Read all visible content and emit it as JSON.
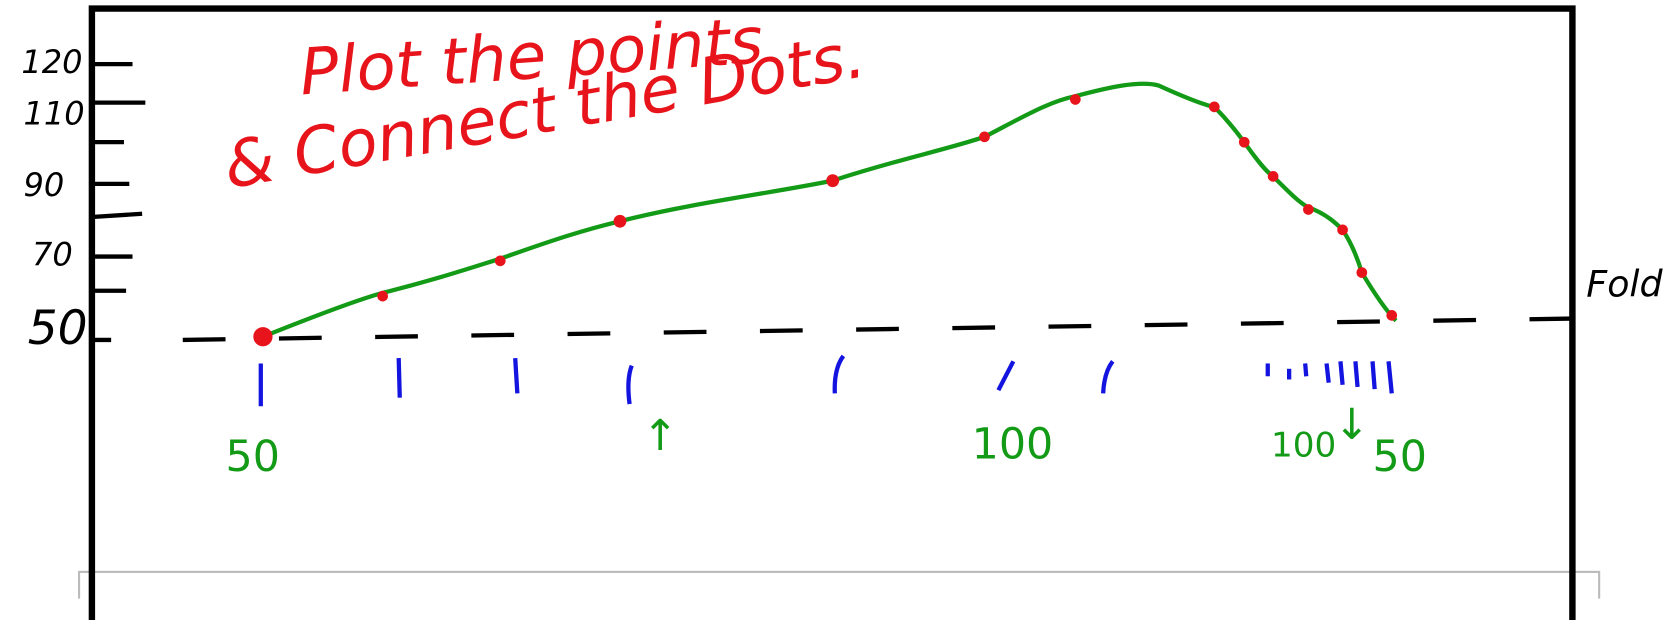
{
  "annotations": {
    "line1": "Plot the points",
    "line2": "& Connect the Dots.",
    "fold": "Fold"
  },
  "y_labels": [
    "120",
    "110",
    "90",
    "70",
    "50"
  ],
  "x_labels": [
    "50",
    "↑",
    "100",
    "100",
    "↓",
    "50"
  ]
}
